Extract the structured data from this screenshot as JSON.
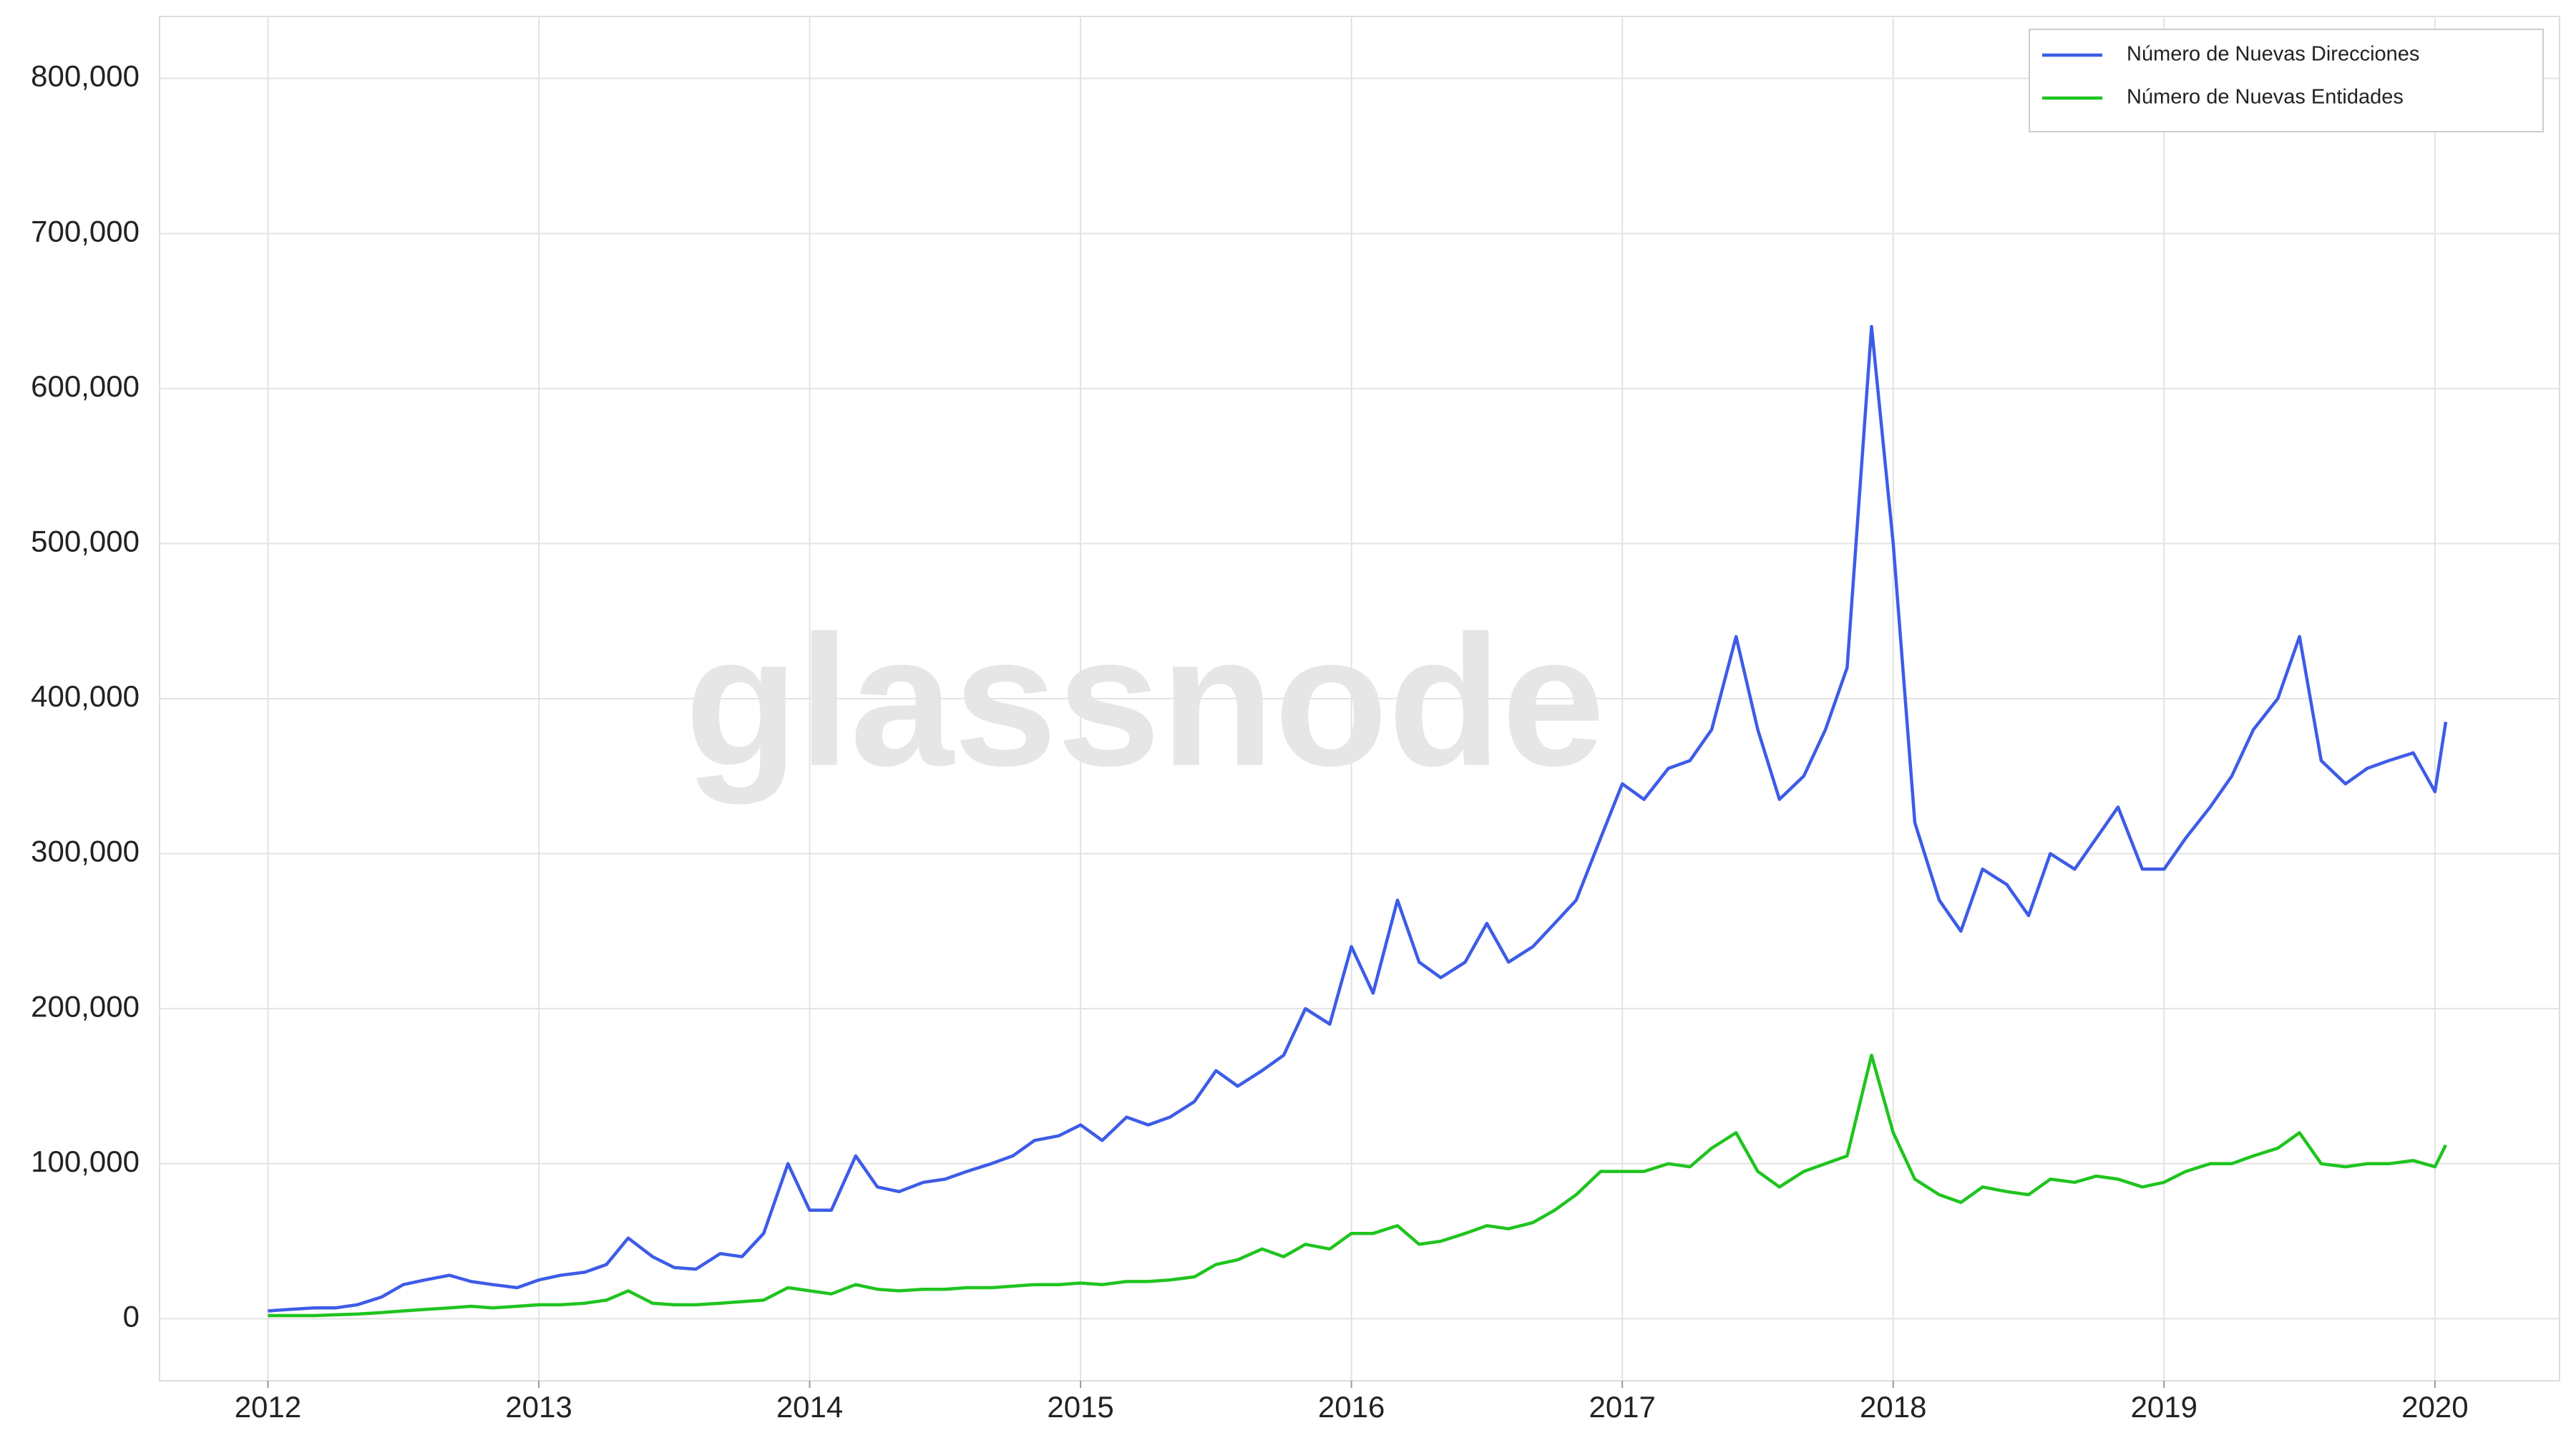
{
  "chart_data": {
    "type": "line",
    "watermark": "glassnode",
    "x": [
      2012.0,
      2012.08,
      2012.17,
      2012.25,
      2012.33,
      2012.42,
      2012.5,
      2012.58,
      2012.67,
      2012.75,
      2012.83,
      2012.92,
      2013.0,
      2013.08,
      2013.17,
      2013.25,
      2013.33,
      2013.42,
      2013.5,
      2013.58,
      2013.67,
      2013.75,
      2013.83,
      2013.92,
      2014.0,
      2014.08,
      2014.17,
      2014.25,
      2014.33,
      2014.42,
      2014.5,
      2014.58,
      2014.67,
      2014.75,
      2014.83,
      2014.92,
      2015.0,
      2015.08,
      2015.17,
      2015.25,
      2015.33,
      2015.42,
      2015.5,
      2015.58,
      2015.67,
      2015.75,
      2015.83,
      2015.92,
      2016.0,
      2016.08,
      2016.17,
      2016.25,
      2016.33,
      2016.42,
      2016.5,
      2016.58,
      2016.67,
      2016.75,
      2016.83,
      2016.92,
      2017.0,
      2017.08,
      2017.17,
      2017.25,
      2017.33,
      2017.42,
      2017.5,
      2017.58,
      2017.67,
      2017.75,
      2017.83,
      2017.92,
      2018.0,
      2018.08,
      2018.17,
      2018.25,
      2018.33,
      2018.42,
      2018.5,
      2018.58,
      2018.67,
      2018.75,
      2018.83,
      2018.92,
      2019.0,
      2019.08,
      2019.17,
      2019.25,
      2019.33,
      2019.42,
      2019.5,
      2019.58,
      2019.67,
      2019.75,
      2019.83,
      2019.92,
      2020.0,
      2020.04
    ],
    "series": [
      {
        "name": "Número de Nuevas Direcciones",
        "color": "#3d5ce6",
        "values": [
          5000,
          6000,
          7000,
          7000,
          9000,
          14000,
          22000,
          25000,
          28000,
          24000,
          22000,
          20000,
          25000,
          28000,
          30000,
          35000,
          52000,
          40000,
          33000,
          32000,
          42000,
          40000,
          55000,
          100000,
          70000,
          70000,
          105000,
          85000,
          82000,
          88000,
          90000,
          95000,
          100000,
          105000,
          115000,
          118000,
          125000,
          115000,
          130000,
          125000,
          130000,
          140000,
          160000,
          150000,
          160000,
          170000,
          200000,
          190000,
          240000,
          210000,
          270000,
          230000,
          220000,
          230000,
          255000,
          230000,
          240000,
          255000,
          270000,
          310000,
          345000,
          335000,
          355000,
          360000,
          380000,
          440000,
          380000,
          335000,
          350000,
          380000,
          420000,
          640000,
          500000,
          320000,
          270000,
          250000,
          290000,
          280000,
          260000,
          300000,
          290000,
          310000,
          330000,
          290000,
          290000,
          310000,
          330000,
          350000,
          380000,
          400000,
          440000,
          360000,
          345000,
          355000,
          360000,
          365000,
          340000,
          385000
        ]
      },
      {
        "name": "Número de Nuevas Entidades",
        "color": "#1fc41f",
        "values": [
          2000,
          2000,
          2000,
          2500,
          3000,
          4000,
          5000,
          6000,
          7000,
          8000,
          7000,
          8000,
          9000,
          9000,
          10000,
          12000,
          18000,
          10000,
          9000,
          9000,
          10000,
          11000,
          12000,
          20000,
          18000,
          16000,
          22000,
          19000,
          18000,
          19000,
          19000,
          20000,
          20000,
          21000,
          22000,
          22000,
          23000,
          22000,
          24000,
          24000,
          25000,
          27000,
          35000,
          38000,
          45000,
          40000,
          48000,
          45000,
          55000,
          55000,
          60000,
          48000,
          50000,
          55000,
          60000,
          58000,
          62000,
          70000,
          80000,
          95000,
          95000,
          95000,
          100000,
          98000,
          110000,
          120000,
          95000,
          85000,
          95000,
          100000,
          105000,
          170000,
          120000,
          90000,
          80000,
          75000,
          85000,
          82000,
          80000,
          90000,
          88000,
          92000,
          90000,
          85000,
          88000,
          95000,
          100000,
          100000,
          105000,
          110000,
          120000,
          100000,
          98000,
          100000,
          100000,
          102000,
          98000,
          112000
        ]
      }
    ],
    "xlim": [
      2011.6,
      2020.46
    ],
    "xticks": [
      2012,
      2013,
      2014,
      2015,
      2016,
      2017,
      2018,
      2019,
      2020
    ],
    "ylim": [
      -40000,
      840000
    ],
    "yticks": [
      0,
      {
        "value": 100000,
        "label": "100,000"
      },
      {
        "value": 200000,
        "label": "200,000"
      },
      {
        "value": 300000,
        "label": "300,000"
      },
      {
        "value": 400000,
        "label": "400,000"
      },
      {
        "value": 500000,
        "label": "500,000"
      },
      {
        "value": 600000,
        "label": "600,000"
      },
      {
        "value": 700000,
        "label": "700,000"
      },
      {
        "value": 800000,
        "label": "800,000"
      }
    ],
    "grid": true,
    "legend": "upper right"
  }
}
